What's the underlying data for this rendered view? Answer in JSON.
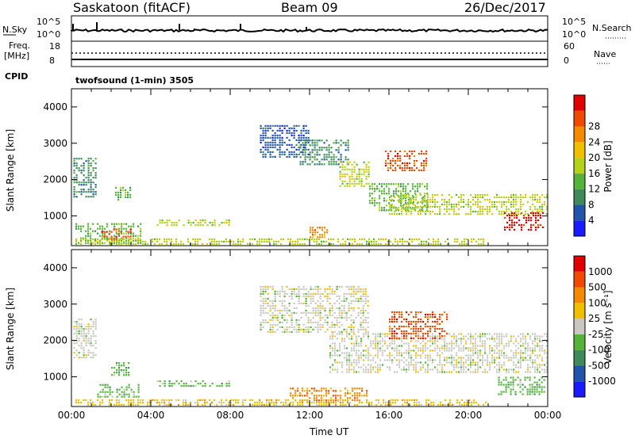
{
  "header": {
    "title": "Saskatoon (fitACF)",
    "beam": "Beam 09",
    "date": "26/Dec/2017"
  },
  "panels": {
    "nsky_label": "N.Sky",
    "nsky_ticks": [
      "10^5",
      "10^0"
    ],
    "nsearch_label": "N.Search",
    "freq_label_1": "Freq.",
    "freq_label_2": "[MHz]",
    "freq_ticks": [
      "18",
      "8"
    ],
    "nave_label": "Nave",
    "nave_ticks": [
      "60",
      "0"
    ],
    "cpid_label": "CPID",
    "cpid_value": "twofsound (1-min) 3505"
  },
  "colors": {
    "power": [
      "#1a1aff",
      "#2255aa",
      "#3f8a5a",
      "#55b33a",
      "#b5d21a",
      "#f0c000",
      "#f58a00",
      "#f04a00",
      "#e00000"
    ],
    "velocity": [
      "#1a1aff",
      "#2255aa",
      "#3f8a5a",
      "#55b33a",
      "#c8c8c0",
      "#f0c000",
      "#f58a00",
      "#f04a00",
      "#e00000"
    ]
  },
  "chart_data": [
    {
      "type": "heatmap",
      "name": "power",
      "xlabel": "",
      "ylabel": "Slant Range [km]",
      "yticks": [
        1000,
        2000,
        3000,
        4000
      ],
      "xlim_hours": [
        0,
        24
      ],
      "ylim": [
        180,
        4500
      ],
      "colorbar_label": "Power [dB]",
      "colorbar_ticks": [
        "4",
        "8",
        "12",
        "16",
        "20",
        "24",
        "28"
      ],
      "regions": [
        {
          "t0": 0.1,
          "t1": 1.3,
          "r0": 1500,
          "r1": 2600,
          "color": 2
        },
        {
          "t0": 0.2,
          "t1": 3.5,
          "r0": 200,
          "r1": 800,
          "color": 3
        },
        {
          "t0": 1.5,
          "t1": 3.0,
          "r0": 300,
          "r1": 650,
          "color": 7
        },
        {
          "t0": 2.2,
          "t1": 3.0,
          "r0": 1400,
          "r1": 1800,
          "color": 3
        },
        {
          "t0": 4.3,
          "t1": 8.0,
          "r0": 700,
          "r1": 900,
          "color": 4
        },
        {
          "t0": 9.5,
          "t1": 12.0,
          "r0": 2600,
          "r1": 3500,
          "color": 1
        },
        {
          "t0": 11.5,
          "t1": 14.0,
          "r0": 2400,
          "r1": 3100,
          "color": 2
        },
        {
          "t0": 13.5,
          "t1": 15.0,
          "r0": 1800,
          "r1": 2500,
          "color": 4
        },
        {
          "t0": 15.0,
          "t1": 18.0,
          "r0": 1100,
          "r1": 1900,
          "color": 3
        },
        {
          "t0": 15.8,
          "t1": 18.0,
          "r0": 2200,
          "r1": 2800,
          "color": 7
        },
        {
          "t0": 16.0,
          "t1": 24.0,
          "r0": 1000,
          "r1": 1600,
          "color": 4
        },
        {
          "t0": 21.8,
          "t1": 23.9,
          "r0": 600,
          "r1": 1100,
          "color": 8
        },
        {
          "t0": 12.0,
          "t1": 13.0,
          "r0": 400,
          "r1": 700,
          "color": 6
        },
        {
          "t0": 0.2,
          "t1": 21.0,
          "r0": 180,
          "r1": 380,
          "color": 4
        }
      ]
    },
    {
      "type": "heatmap",
      "name": "velocity",
      "xlabel": "Time UT",
      "ylabel": "Slant Range [km]",
      "yticks": [
        1000,
        2000,
        3000,
        4000
      ],
      "xticks": [
        "00:00",
        "04:00",
        "08:00",
        "12:00",
        "16:00",
        "20:00",
        "00:00"
      ],
      "xlim_hours": [
        0,
        24
      ],
      "ylim": [
        180,
        4500
      ],
      "colorbar_label": "Velocity [m s⁻¹]",
      "colorbar_ticks": [
        "1000",
        "500",
        "100",
        "25",
        "-25",
        "-100",
        "-500",
        "-1000"
      ],
      "regions": [
        {
          "t0": 0.1,
          "t1": 1.3,
          "r0": 1500,
          "r1": 2600,
          "color": 4
        },
        {
          "t0": 1.3,
          "t1": 3.5,
          "r0": 400,
          "r1": 800,
          "color": 3
        },
        {
          "t0": 2.0,
          "t1": 3.0,
          "r0": 1000,
          "r1": 1400,
          "color": 3
        },
        {
          "t0": 4.3,
          "t1": 8.0,
          "r0": 700,
          "r1": 900,
          "color": 3
        },
        {
          "t0": 9.5,
          "t1": 15.0,
          "r0": 2200,
          "r1": 3500,
          "color": 4
        },
        {
          "t0": 13.0,
          "t1": 24.0,
          "r0": 1100,
          "r1": 2200,
          "color": 4
        },
        {
          "t0": 16.0,
          "t1": 19.0,
          "r0": 2000,
          "r1": 2800,
          "color": 7
        },
        {
          "t0": 21.5,
          "t1": 23.9,
          "r0": 500,
          "r1": 1000,
          "color": 3
        },
        {
          "t0": 11.0,
          "t1": 15.0,
          "r0": 300,
          "r1": 700,
          "color": 6
        },
        {
          "t0": 0.2,
          "t1": 21.0,
          "r0": 180,
          "r1": 380,
          "color": 5
        }
      ]
    }
  ]
}
